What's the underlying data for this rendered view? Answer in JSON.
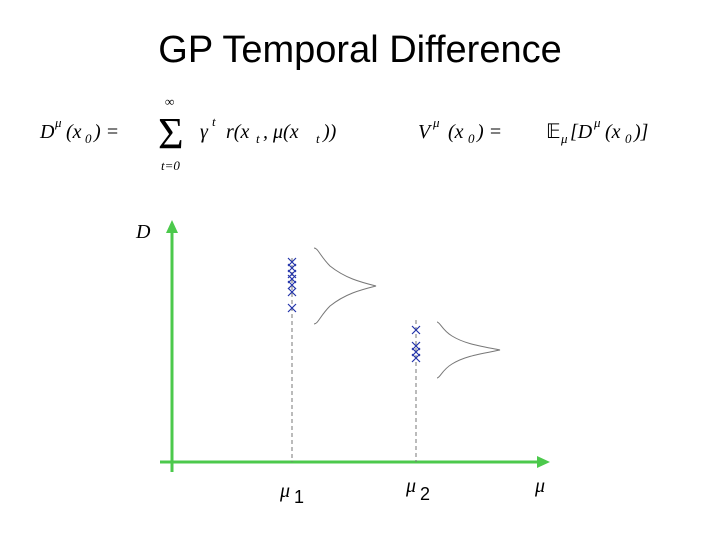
{
  "title": "GP Temporal Difference",
  "equation_1": {
    "parts": [
      "D",
      "μ",
      "(x",
      "0",
      ") =",
      "∞",
      "Σ",
      "t=0",
      "γ",
      "t",
      "r(x",
      "t",
      ", μ(x",
      "t",
      "))"
    ]
  },
  "equation_2": {
    "parts": [
      "V",
      "μ",
      "(x",
      "0",
      ") =",
      "𝔼",
      "μ",
      "[D",
      "μ",
      "(x",
      "0",
      ")]"
    ]
  },
  "axis": {
    "y_label": "D",
    "x_label": "μ"
  },
  "markers": [
    {
      "symbol": "μ",
      "index": "1"
    },
    {
      "symbol": "μ",
      "index": "2"
    }
  ]
}
